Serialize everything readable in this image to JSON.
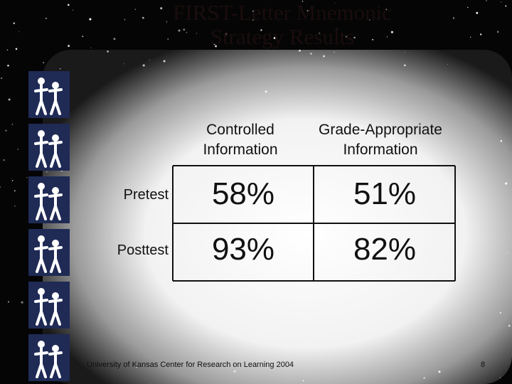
{
  "slide": {
    "title": [
      "FIRST-Letter Mnemonic",
      "Strategy Results"
    ],
    "table": {
      "columns": [
        [
          "Controlled",
          "Information"
        ],
        [
          "Grade-Appropriate",
          "Information"
        ]
      ],
      "rows": [
        {
          "label": "Pretest",
          "cells": [
            "58%",
            "51%"
          ]
        },
        {
          "label": "Posttest",
          "cells": [
            "93%",
            "82%"
          ]
        }
      ]
    },
    "footer": "University of Kansas Center for Research on Learning  2004",
    "page_number": "8"
  }
}
